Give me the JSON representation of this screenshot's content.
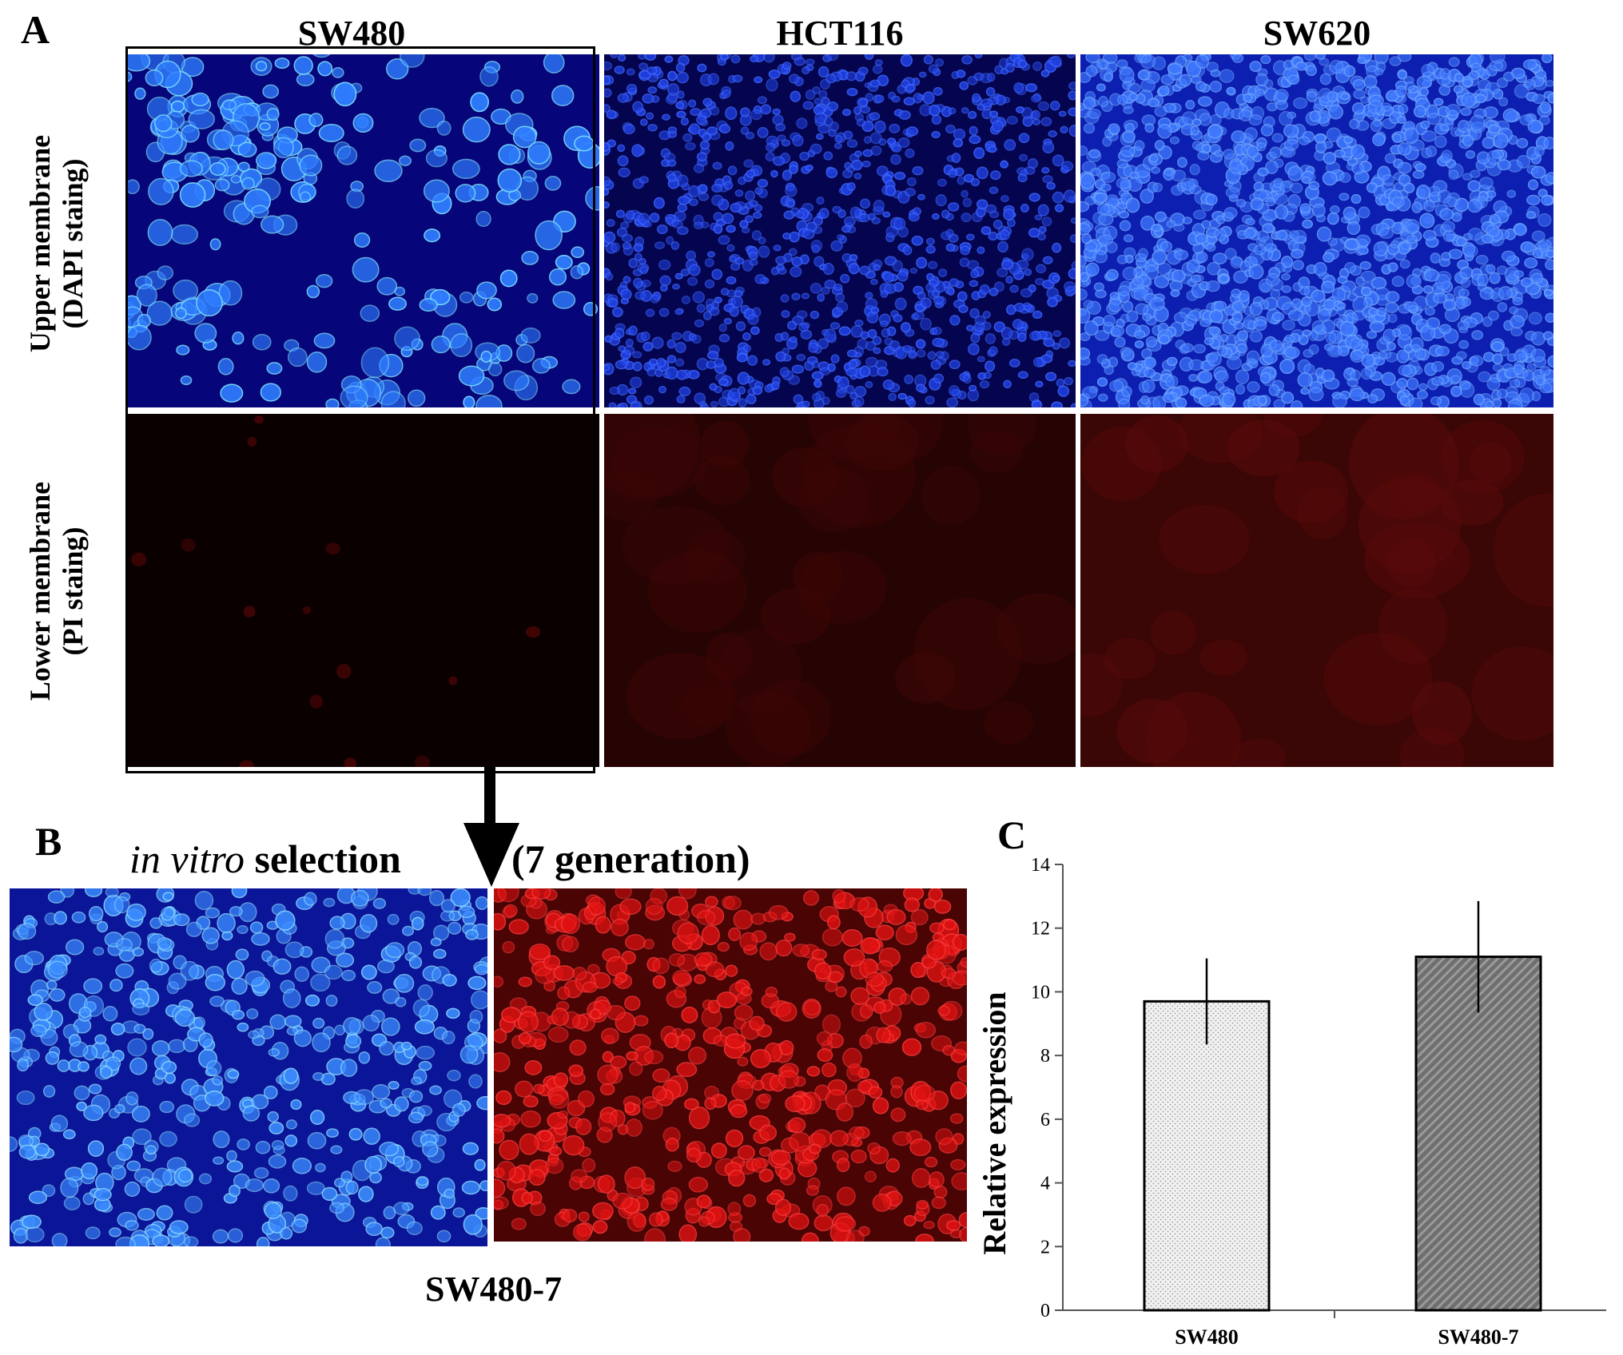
{
  "panels": {
    "a": {
      "letter": "A"
    },
    "b": {
      "letter": "B"
    },
    "c": {
      "letter": "C"
    }
  },
  "panel_a": {
    "columns": [
      "SW480",
      "HCT116",
      "SW620"
    ],
    "rows": [
      {
        "line1": "Upper membrane",
        "line2": "(DAPI staing)"
      },
      {
        "line1": "Lower membrane",
        "line2": "(PI staing)"
      }
    ]
  },
  "panel_b": {
    "caption_italic": "in vitro",
    "caption_rest": " selection",
    "caption_right": "(7 generation)",
    "sample_label": "SW480-7"
  },
  "colors": {
    "dapi_background": "#08087a",
    "dapi_cell": "#2f6dff",
    "pi_background": "#3a0808",
    "pi_cell": "#e01010"
  },
  "chart_data": {
    "type": "bar",
    "categories": [
      "SW480",
      "SW480-7"
    ],
    "values": [
      9.7,
      11.1
    ],
    "errors": [
      1.35,
      1.75
    ],
    "ylabel": "Relative expression",
    "xlabel": "",
    "title": "",
    "ylim": [
      0,
      14
    ],
    "yticks": [
      0,
      2,
      4,
      6,
      8,
      10,
      12,
      14
    ],
    "grid": false,
    "legend": "none",
    "bar_fills": [
      "light dotted",
      "dark hatched"
    ]
  }
}
